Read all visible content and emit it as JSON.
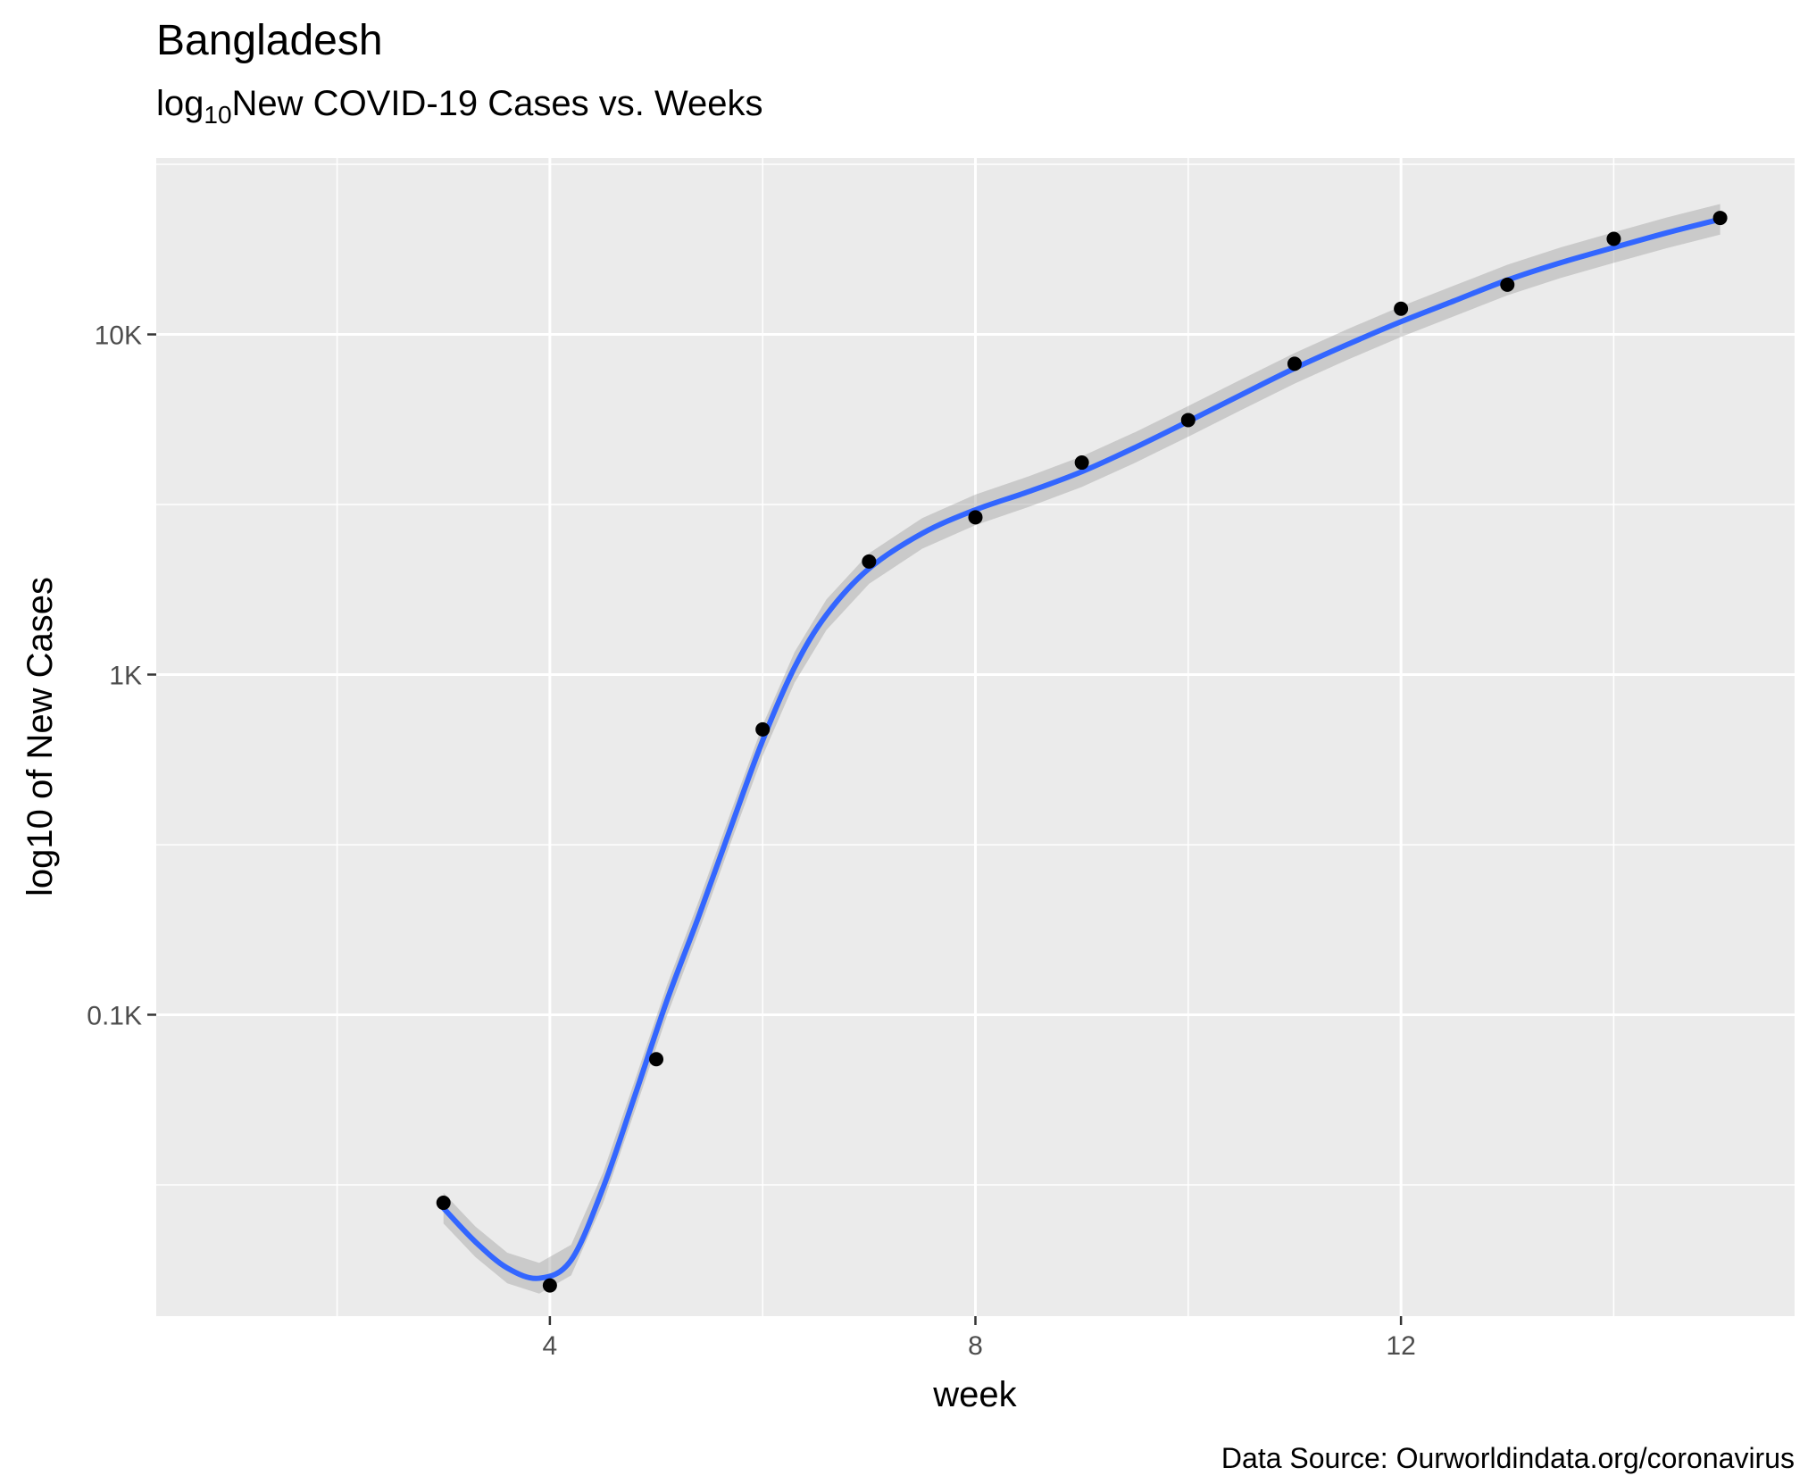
{
  "chart_data": {
    "type": "scatter",
    "title": "Bangladesh",
    "subtitle": {
      "prefix": "log",
      "subscript": "10",
      "rest": "New COVID-19 Cases vs. Weeks"
    },
    "xlabel": "week",
    "ylabel": "log10 of New Cases",
    "caption": "Data Source: Ourworldindata.org/coronavirus",
    "y_scale": "log10",
    "xlim": [
      0.3,
      15.7
    ],
    "ylim": [
      13,
      33000
    ],
    "x_ticks": [
      {
        "value": 4,
        "label": "4"
      },
      {
        "value": 8,
        "label": "8"
      },
      {
        "value": 12,
        "label": "12"
      }
    ],
    "x_minor_grid": [
      2,
      6,
      10,
      14
    ],
    "y_ticks": [
      {
        "value": 100,
        "label": "0.1K"
      },
      {
        "value": 1000,
        "label": "1K"
      },
      {
        "value": 10000,
        "label": "10K"
      }
    ],
    "y_minor_grid": [
      31.6,
      316,
      3162,
      31623
    ],
    "grid": true,
    "legend": "none",
    "points": {
      "x": [
        3,
        4,
        5,
        6,
        7,
        8,
        9,
        10,
        11,
        12,
        13,
        14,
        15
      ],
      "y": [
        28,
        16,
        74,
        690,
        2150,
        2900,
        4200,
        5600,
        8200,
        11900,
        14000,
        19100,
        22000
      ]
    },
    "smooth": {
      "x": [
        3,
        3.3,
        3.6,
        3.9,
        4.2,
        4.5,
        4.8,
        5.1,
        5.4,
        5.7,
        6,
        6.3,
        6.6,
        7,
        7.5,
        8,
        8.5,
        9,
        9.5,
        10,
        10.5,
        11,
        11.5,
        12,
        12.5,
        13,
        13.5,
        14,
        14.5,
        15
      ],
      "y": [
        27,
        21.5,
        18,
        16.8,
        19,
        31,
        58,
        110,
        195,
        355,
        640,
        1050,
        1500,
        2050,
        2600,
        3050,
        3450,
        3950,
        4650,
        5550,
        6650,
        7950,
        9350,
        10900,
        12550,
        14450,
        16250,
        18000,
        19900,
        21800
      ]
    },
    "band_halfwidth_log10": 0.045,
    "colors": {
      "panel": "#ebebeb",
      "grid": "#ffffff",
      "line": "#3366ff",
      "band": "#999999",
      "points": "#000000"
    }
  }
}
